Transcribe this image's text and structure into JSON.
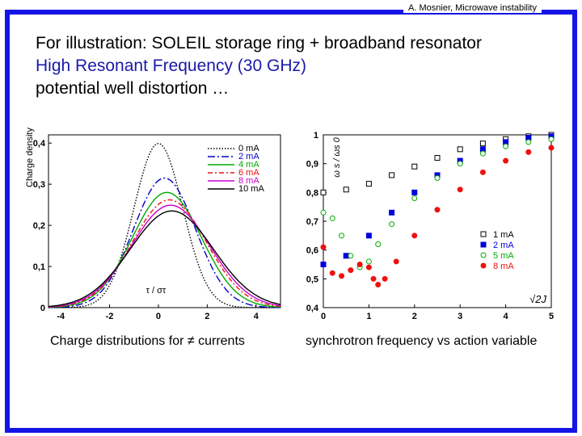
{
  "header": {
    "text": "A. Mosnier, Microwave instability"
  },
  "title": {
    "line1": "For illustration: SOLEIL storage ring + broadband resonator",
    "line2": "High Resonant Frequency (30 GHz)",
    "line3": "potential well distortion …"
  },
  "colors": {
    "frame": "#1414e6",
    "title_blue": "#1a1aa8"
  },
  "captions": {
    "left": "Charge distributions for ≠ currents",
    "right": "synchrotron frequency vs action variable"
  },
  "chart_data": [
    {
      "type": "line",
      "title": "",
      "ylabel": "Charge density",
      "xlabel_inplot": "τ / στ",
      "xlim": [
        -4.5,
        5
      ],
      "ylim": [
        0,
        0.42
      ],
      "xticks": [
        "-4",
        "-2",
        "0",
        "2",
        "4"
      ],
      "yticks": [
        "0",
        "0,1",
        "0,2",
        "0,3",
        "0,4"
      ],
      "legend_position": "top-right",
      "series": [
        {
          "name": "0 mA",
          "color": "#000000",
          "dash": "1.5,2",
          "mu": 0.0,
          "sigma": 1.0,
          "peak": 0.399
        },
        {
          "name": "2 mA",
          "color": "#0000cc",
          "dash": "9,3,2,3",
          "mu": 0.25,
          "sigma": 1.27,
          "peak": 0.315
        },
        {
          "name": "4 mA",
          "color": "#00aa00",
          "dash": "",
          "mu": 0.35,
          "sigma": 1.42,
          "peak": 0.28
        },
        {
          "name": "6 mA",
          "color": "#ee1111",
          "dash": "6,3,2,3",
          "mu": 0.45,
          "sigma": 1.52,
          "peak": 0.262
        },
        {
          "name": "8 mA",
          "color": "#cc00cc",
          "dash": "",
          "mu": 0.5,
          "sigma": 1.6,
          "peak": 0.249
        },
        {
          "name": "10 mA",
          "color": "#000000",
          "dash": "",
          "mu": 0.55,
          "sigma": 1.7,
          "peak": 0.235
        }
      ]
    },
    {
      "type": "scatter",
      "title": "",
      "ylabel": "ω s / ωs 0",
      "xlabel": "√2J",
      "xlim": [
        0,
        5
      ],
      "ylim": [
        0.4,
        1.0
      ],
      "xticks": [
        "0",
        "1",
        "2",
        "3",
        "4",
        "5"
      ],
      "yticks": [
        "0,4",
        "0,5",
        "0,6",
        "0,7",
        "0,8",
        "0,9",
        "1"
      ],
      "legend_position": "bottom-right",
      "series": [
        {
          "name": "1 mA",
          "color": "#000000",
          "marker": "open-square",
          "x": [
            0,
            0.5,
            1,
            1.5,
            2,
            2.5,
            3,
            3.5,
            4,
            4.5,
            5
          ],
          "y": [
            0.8,
            0.81,
            0.83,
            0.86,
            0.89,
            0.92,
            0.95,
            0.97,
            0.985,
            0.995,
            1.0
          ]
        },
        {
          "name": "2 mA",
          "color": "#0000dd",
          "marker": "filled-square",
          "x": [
            0,
            0.5,
            1,
            1.5,
            2,
            2.5,
            3,
            3.5,
            4,
            4.5,
            5
          ],
          "y": [
            0.55,
            0.58,
            0.65,
            0.73,
            0.8,
            0.86,
            0.91,
            0.95,
            0.975,
            0.99,
            0.995
          ]
        },
        {
          "name": "5 mA",
          "color": "#00aa00",
          "marker": "open-circle",
          "x": [
            0,
            0.2,
            0.4,
            0.6,
            0.8,
            1.0,
            1.2,
            1.5,
            2,
            2.5,
            3,
            3.5,
            4,
            4.5,
            5
          ],
          "y": [
            0.73,
            0.71,
            0.65,
            0.58,
            0.54,
            0.56,
            0.62,
            0.69,
            0.78,
            0.85,
            0.9,
            0.935,
            0.96,
            0.975,
            0.985
          ]
        },
        {
          "name": "8 mA",
          "color": "#ee1111",
          "marker": "filled-circle",
          "x": [
            0,
            0.2,
            0.4,
            0.6,
            0.8,
            1.0,
            1.1,
            1.2,
            1.35,
            1.6,
            2,
            2.5,
            3,
            3.5,
            4,
            4.5,
            5
          ],
          "y": [
            0.61,
            0.52,
            0.51,
            0.53,
            0.55,
            0.54,
            0.5,
            0.48,
            0.5,
            0.56,
            0.65,
            0.74,
            0.81,
            0.87,
            0.91,
            0.94,
            0.955
          ]
        }
      ]
    }
  ]
}
